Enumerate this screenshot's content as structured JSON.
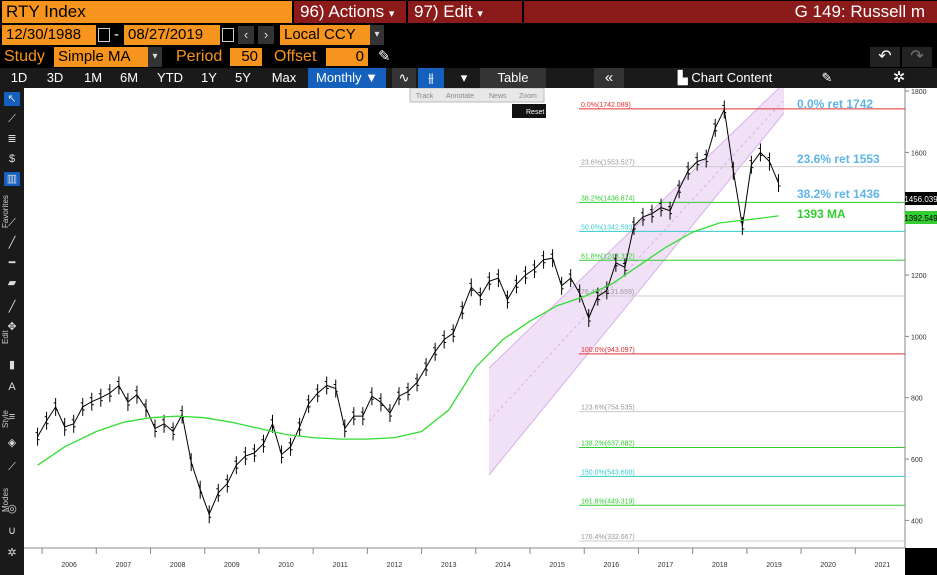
{
  "header": {
    "ticker": "RTY Index",
    "actions_label": "96) Actions",
    "edit_label": "97) Edit",
    "caret": "▾",
    "title_right": "G 149: Russell m"
  },
  "dates": {
    "start": "12/30/1988",
    "sep": "-",
    "end": "08/27/2019",
    "currency": "Local CCY"
  },
  "study": {
    "study_label": "Study",
    "study_value": "Simple MA",
    "period_label": "Period",
    "period_value": "50",
    "offset_label": "Offset",
    "offset_value": "0"
  },
  "toolbar": {
    "ranges": [
      "1D",
      "3D",
      "1M",
      "6M",
      "YTD",
      "1Y",
      "5Y",
      "Max"
    ],
    "frequency": "Monthly ▼",
    "table": "Table",
    "chart_content": "Chart Content"
  },
  "popup": {
    "track": "Track",
    "annotate": "Annotate",
    "news": "News",
    "zoom": "Zoom",
    "reset": "Reset"
  },
  "sidebar": {
    "favorites": "Favorites",
    "edit": "Edit",
    "style": "Style",
    "modes": "Modes"
  },
  "colors": {
    "accent_orange": "#f7941d",
    "header_red": "#8b1a1a",
    "ma_green": "#33dd33",
    "fib_red": "#e03030",
    "fib_cyan": "#33cccc",
    "channel": "#e6c8f0",
    "label_blue": "#5fb4ea",
    "selected_blue": "#1560bd"
  },
  "chart_data": {
    "type": "line",
    "series": [
      {
        "name": "",
        "x": [
          "2005-12",
          "2006-02",
          "2006-04",
          "2006-06",
          "2006-08",
          "2006-10",
          "2006-12",
          "2007-02",
          "2007-04",
          "2007-06",
          "2007-08",
          "2007-10",
          "2007-12",
          "2008-02",
          "2008-04",
          "2008-06",
          "2008-08",
          "2008-10",
          "2008-12",
          "2009-02",
          "2009-04",
          "2009-06",
          "2009-08",
          "2009-10",
          "2009-12",
          "2010-02",
          "2010-04",
          "2010-06",
          "2010-08",
          "2010-10",
          "2010-12",
          "2011-02",
          "2011-04",
          "2011-06",
          "2011-08",
          "2011-10",
          "2011-12",
          "2012-02",
          "2012-04",
          "2012-06",
          "2012-08",
          "2012-10",
          "2012-12",
          "2013-02",
          "2013-04",
          "2013-06",
          "2013-08",
          "2013-10",
          "2013-12",
          "2014-02",
          "2014-04",
          "2014-06",
          "2014-08",
          "2014-10",
          "2014-12",
          "2015-02",
          "2015-04",
          "2015-06",
          "2015-08",
          "2015-10",
          "2015-12",
          "2016-02",
          "2016-04",
          "2016-06",
          "2016-08",
          "2016-10",
          "2016-12",
          "2017-02",
          "2017-04",
          "2017-06",
          "2017-08",
          "2017-10",
          "2017-12",
          "2018-02",
          "2018-04",
          "2018-06",
          "2018-08",
          "2018-10",
          "2018-12",
          "2019-02",
          "2019-04",
          "2019-06",
          "2019-08"
        ],
        "values": [
          673,
          725,
          770,
          705,
          715,
          770,
          787,
          800,
          815,
          840,
          786,
          810,
          766,
          700,
          715,
          690,
          745,
          590,
          500,
          420,
          490,
          520,
          580,
          610,
          620,
          650,
          715,
          615,
          640,
          705,
          780,
          815,
          840,
          830,
          700,
          740,
          740,
          805,
          785,
          750,
          805,
          820,
          850,
          900,
          950,
          990,
          1010,
          1085,
          1160,
          1130,
          1180,
          1190,
          1120,
          1170,
          1200,
          1220,
          1250,
          1255,
          1165,
          1190,
          1140,
          1060,
          1130,
          1150,
          1240,
          1225,
          1360,
          1390,
          1400,
          1420,
          1410,
          1480,
          1540,
          1570,
          1580,
          1680,
          1740,
          1540,
          1360,
          1560,
          1600,
          1570,
          1500
        ]
      },
      {
        "name": "1393 MA",
        "x": [
          "2005-12",
          "2006-06",
          "2007-01",
          "2007-07",
          "2008-01",
          "2008-07",
          "2009-01",
          "2009-07",
          "2010-01",
          "2010-07",
          "2011-01",
          "2011-07",
          "2012-01",
          "2012-07",
          "2013-01",
          "2013-07",
          "2014-01",
          "2014-07",
          "2015-01",
          "2015-07",
          "2016-01",
          "2016-07",
          "2017-01",
          "2017-07",
          "2018-01",
          "2018-07",
          "2019-01",
          "2019-08"
        ],
        "values": [
          580,
          640,
          690,
          720,
          735,
          740,
          735,
          720,
          700,
          680,
          670,
          665,
          665,
          670,
          690,
          760,
          900,
          990,
          1050,
          1100,
          1130,
          1170,
          1230,
          1290,
          1340,
          1370,
          1380,
          1393
        ]
      }
    ],
    "fib_levels": [
      {
        "label": "0.0%(1742.089)",
        "value": 1742.089
      },
      {
        "label": "23.6%(1553.527)",
        "value": 1553.527
      },
      {
        "label": "38.2%(1436.874)",
        "value": 1436.874
      },
      {
        "label": "50.0%(1342.593)",
        "value": 1342.593
      },
      {
        "label": "61.8%(1248.312)",
        "value": 1248.312
      },
      {
        "label": "76.4%(1131.659)",
        "value": 1131.659
      },
      {
        "label": "100.0%(943.097)",
        "value": 943.097
      },
      {
        "label": "123.6%(754.535)",
        "value": 754.535
      },
      {
        "label": "138.2%(637.882)",
        "value": 637.882
      },
      {
        "label": "150.0%(543.600)",
        "value": 543.6
      },
      {
        "label": "161.8%(449.319)",
        "value": 449.319
      },
      {
        "label": "176.4%(332.667)",
        "value": 332.667
      }
    ],
    "annotations": [
      "0.0% ret 1742",
      "23.6% ret 1553",
      "38.2% ret 1436",
      "1393 MA"
    ],
    "price_tags": [
      "1456.039",
      "1392.549"
    ],
    "x_ticks": [
      "2006",
      "2007",
      "2008",
      "2009",
      "2010",
      "2011",
      "2012",
      "2013",
      "2014",
      "2015",
      "2016",
      "2017",
      "2018",
      "2019",
      "2020",
      "2021"
    ],
    "y_ticks": [
      400,
      600,
      800,
      1000,
      1200,
      1400,
      1600,
      1800
    ],
    "ylim": [
      310,
      1810
    ],
    "xlim": [
      "2005-09",
      "2021-12"
    ],
    "grid": false
  }
}
